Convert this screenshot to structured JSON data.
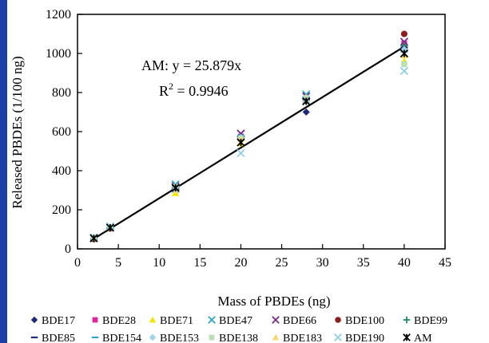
{
  "chart_data": {
    "type": "scatter",
    "title": "",
    "xlabel": "Mass of PBDEs (ng)",
    "ylabel": "Released PBDEs (1/100 ng)",
    "xlim": [
      0,
      45
    ],
    "ylim": [
      0,
      1200
    ],
    "x_ticks": [
      0,
      5,
      10,
      15,
      20,
      25,
      30,
      35,
      40,
      45
    ],
    "y_ticks": [
      0,
      200,
      400,
      600,
      800,
      1000,
      1200
    ],
    "x_tick_labels": [
      "0",
      "5",
      "10",
      "15",
      "20",
      "25",
      "30",
      "35",
      "40",
      "45"
    ],
    "y_tick_labels": [
      "0",
      "200",
      "400",
      "600",
      "800",
      "1000",
      "1200"
    ],
    "grid": false,
    "legend_position": "bottom",
    "annotation": {
      "equation": "AM: y = 25.879x",
      "r2_prefix": "R",
      "r2_sup": "2",
      "r2_value": " = 0.9946"
    },
    "fit_line": {
      "name": "",
      "slope": 25.879,
      "x_range": [
        2,
        40
      ],
      "color": "#000000"
    },
    "series": [
      {
        "name": "BDE17",
        "marker": "diamond",
        "color": "#1f2a7a",
        "x": [
          2,
          4,
          12,
          20,
          28,
          40
        ],
        "y": [
          50,
          105,
          300,
          560,
          700,
          1040
        ]
      },
      {
        "name": "BDE28",
        "marker": "square",
        "color": "#e0259b",
        "x": [
          2,
          4,
          12,
          20,
          28,
          40
        ],
        "y": [
          52,
          108,
          310,
          575,
          760,
          1050
        ]
      },
      {
        "name": "BDE71",
        "marker": "triangle",
        "color": "#f2e600",
        "x": [
          2,
          4,
          12,
          20,
          28,
          40
        ],
        "y": [
          55,
          110,
          285,
          540,
          780,
          960
        ]
      },
      {
        "name": "BDE47",
        "marker": "x",
        "color": "#2aa6c6",
        "x": [
          2,
          4,
          12,
          20,
          28,
          40
        ],
        "y": [
          58,
          115,
          330,
          590,
          790,
          1000
        ]
      },
      {
        "name": "BDE66",
        "marker": "x",
        "color": "#7b2a8a",
        "x": [
          2,
          4,
          12,
          20,
          28,
          40
        ],
        "y": [
          55,
          110,
          320,
          590,
          780,
          1060
        ]
      },
      {
        "name": "BDE100",
        "marker": "circle",
        "color": "#8b1e1e",
        "x": [
          2,
          4,
          12,
          20,
          28,
          40
        ],
        "y": [
          50,
          105,
          310,
          560,
          760,
          1100
        ]
      },
      {
        "name": "BDE99",
        "marker": "plus",
        "color": "#1b8a6a",
        "x": [
          2,
          4,
          12,
          20,
          28,
          40
        ],
        "y": [
          52,
          108,
          315,
          570,
          770,
          1040
        ]
      },
      {
        "name": "BDE85",
        "marker": "dash",
        "color": "#1f2a7a",
        "x": [
          2,
          4,
          12,
          20,
          28,
          40
        ],
        "y": [
          50,
          105,
          310,
          560,
          760,
          1030
        ]
      },
      {
        "name": "BDE154",
        "marker": "dash",
        "color": "#2aa6c6",
        "x": [
          2,
          4,
          12,
          20,
          28,
          40
        ],
        "y": [
          52,
          110,
          320,
          580,
          770,
          1010
        ]
      },
      {
        "name": "BDE153",
        "marker": "diamond",
        "color": "#9fd3e6",
        "x": [
          2,
          4,
          12,
          20,
          28,
          40
        ],
        "y": [
          55,
          112,
          315,
          570,
          775,
          1020
        ]
      },
      {
        "name": "BDE138",
        "marker": "square",
        "color": "#b8e0b0",
        "x": [
          2,
          4,
          12,
          20,
          28,
          40
        ],
        "y": [
          55,
          112,
          318,
          565,
          772,
          945
        ]
      },
      {
        "name": "BDE183",
        "marker": "triangle",
        "color": "#f6d96a",
        "x": [
          2,
          4,
          12,
          20,
          28,
          40
        ],
        "y": [
          54,
          110,
          300,
          560,
          770,
          990
        ]
      },
      {
        "name": "BDE190",
        "marker": "x",
        "color": "#8fcfe6",
        "x": [
          2,
          4,
          12,
          20,
          28,
          40
        ],
        "y": [
          56,
          114,
          305,
          490,
          765,
          910
        ]
      },
      {
        "name": "AM",
        "marker": "star",
        "color": "#000000",
        "x": [
          2,
          4,
          12,
          20,
          28,
          40
        ],
        "y": [
          54,
          108,
          312,
          545,
          755,
          1000
        ]
      }
    ]
  }
}
